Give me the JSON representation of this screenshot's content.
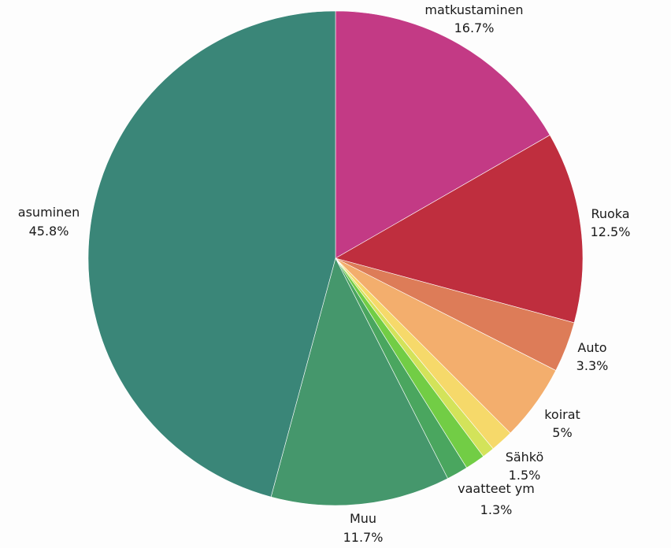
{
  "chart_data": {
    "type": "pie",
    "title": "",
    "slices": [
      {
        "label": "matkustaminen",
        "value": 16.7,
        "display": "16.7%",
        "color": "#c33a85"
      },
      {
        "label": "Ruoka",
        "value": 12.5,
        "display": "12.5%",
        "color": "#bf2e3e"
      },
      {
        "label": "Auto",
        "value": 3.3,
        "display": "3.3%",
        "color": "#dd7c58"
      },
      {
        "label": "koirat",
        "value": 5,
        "display": "5%",
        "color": "#f3ae6d"
      },
      {
        "label": "Sähkö",
        "value": 1.5,
        "display": "1.5%",
        "color": "#f6d96a"
      },
      {
        "label": "",
        "value": 0.8,
        "display": "",
        "color": "#d3e35a"
      },
      {
        "label": "vaatteet ym",
        "value": 1.3,
        "display": "1.3%",
        "color": "#72cd45"
      },
      {
        "label": "",
        "value": 1.4,
        "display": "",
        "color": "#4aa65f"
      },
      {
        "label": "Muu",
        "value": 11.7,
        "display": "11.7%",
        "color": "#45976c"
      },
      {
        "label": "asuminen",
        "value": 45.8,
        "display": "45.8%",
        "color": "#3a8678"
      }
    ],
    "start_angle": "top",
    "direction": "clockwise"
  }
}
